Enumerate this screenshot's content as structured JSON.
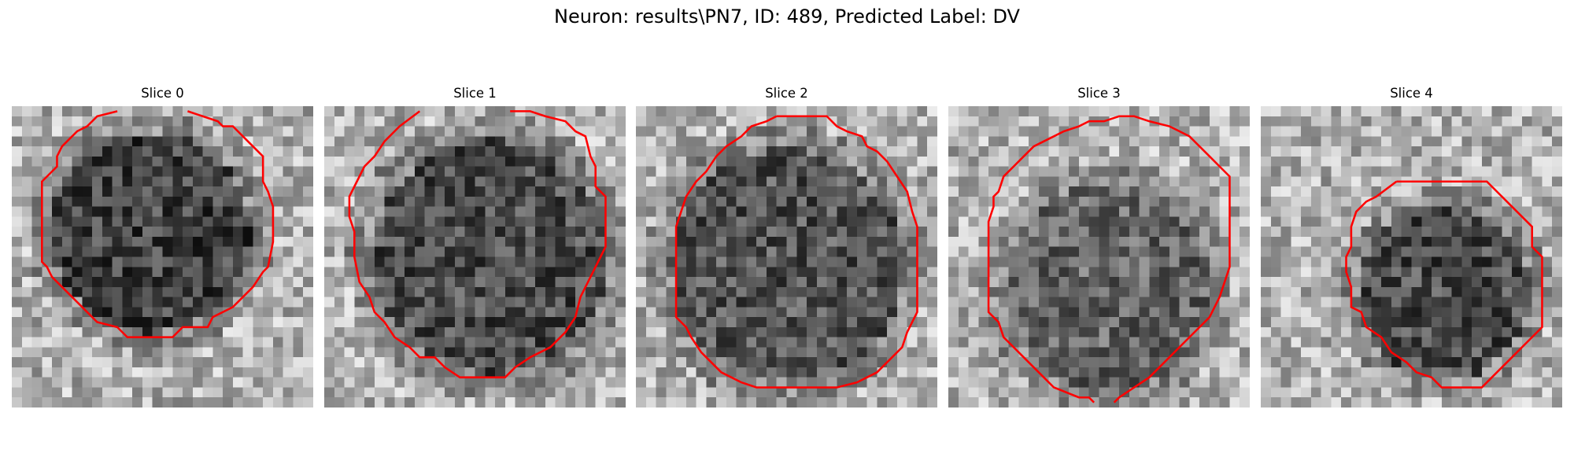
{
  "figure": {
    "title": "Neuron: results\\PN7, ID: 489, Predicted Label: DV"
  },
  "colors": {
    "contour": "#ff0000"
  },
  "slices": [
    {
      "title": "Slice 0",
      "cell_center": [
        0.46,
        0.42
      ],
      "cell_radius": 0.36,
      "tone": 0.26
    },
    {
      "title": "Slice 1",
      "cell_center": [
        0.55,
        0.5
      ],
      "cell_radius": 0.42,
      "tone": 0.3
    },
    {
      "title": "Slice 2",
      "cell_center": [
        0.5,
        0.53
      ],
      "cell_radius": 0.42,
      "tone": 0.33
    },
    {
      "title": "Slice 3",
      "cell_center": [
        0.53,
        0.6
      ],
      "cell_radius": 0.37,
      "tone": 0.4
    },
    {
      "title": "Slice 4",
      "cell_center": [
        0.61,
        0.62
      ],
      "cell_radius": 0.31,
      "tone": 0.3
    }
  ]
}
